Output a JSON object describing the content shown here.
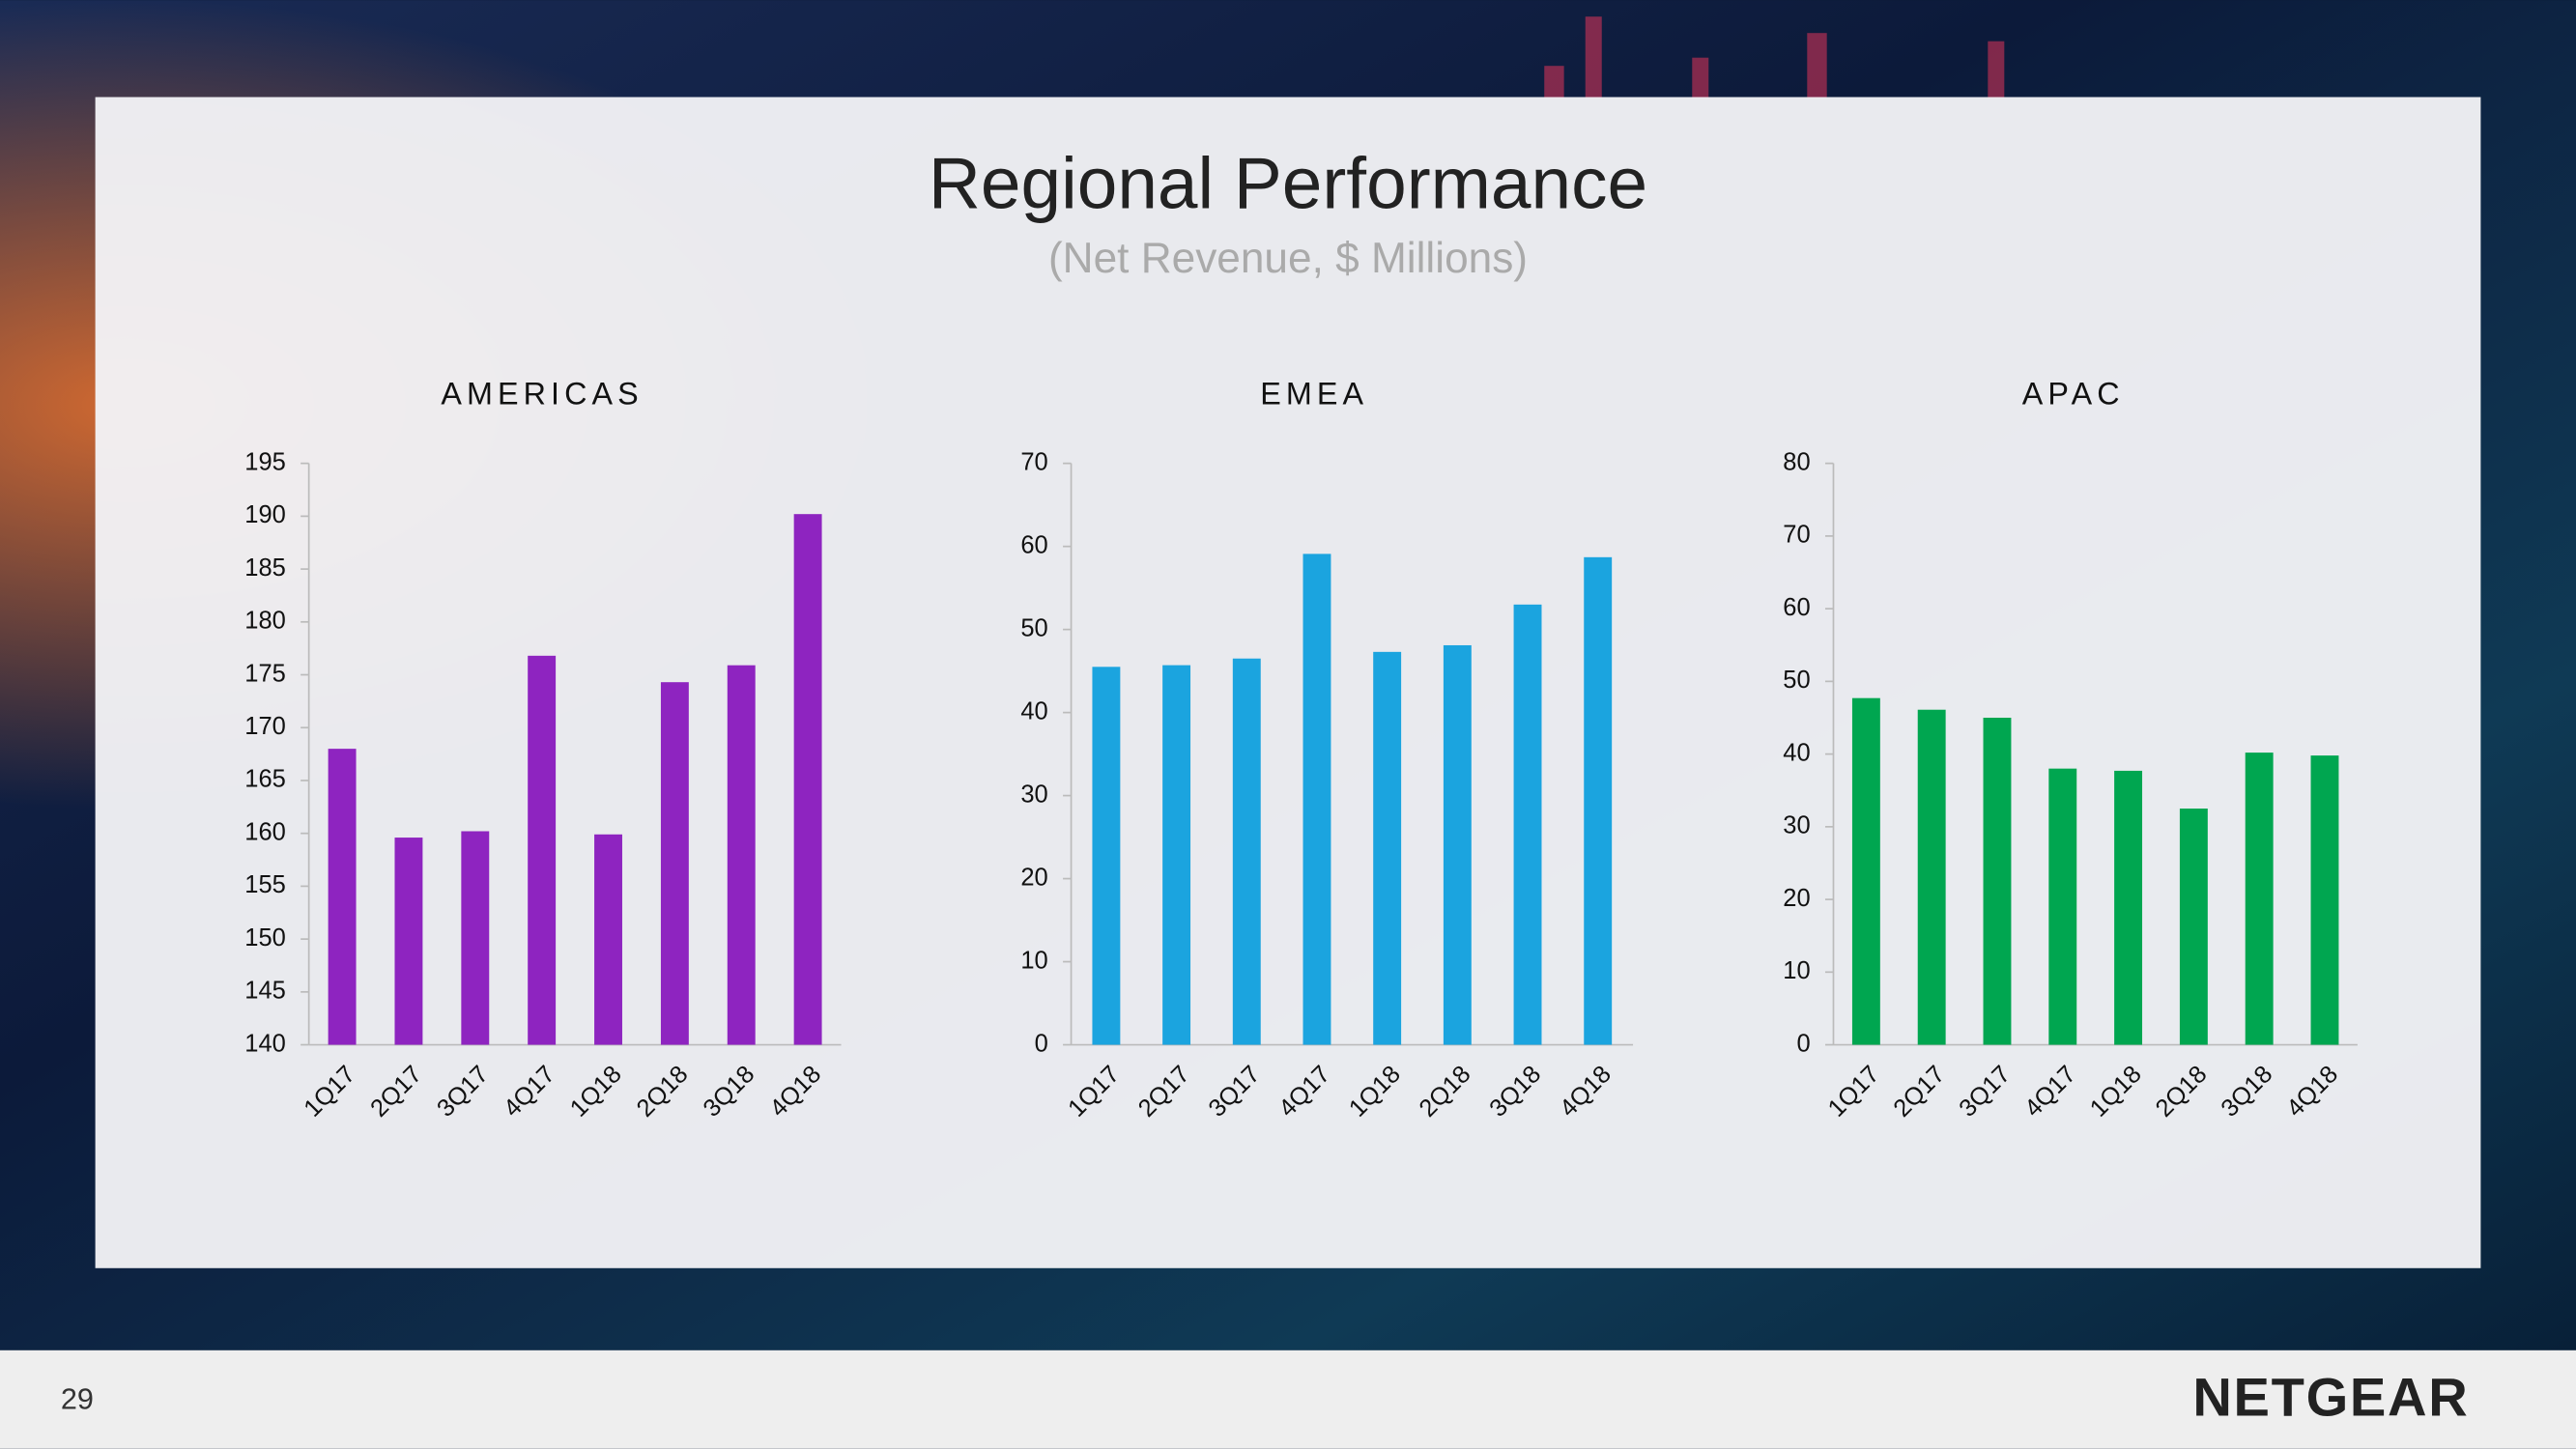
{
  "title": "Regional Performance",
  "subtitle": "(Net Revenue, $ Millions)",
  "page_number": "29",
  "logo": "NETGEAR",
  "chart_data": [
    {
      "type": "bar",
      "title": "AMERICAS",
      "categories": [
        "1Q17",
        "2Q17",
        "3Q17",
        "4Q17",
        "1Q18",
        "2Q18",
        "3Q18",
        "4Q18"
      ],
      "values": [
        168.0,
        159.6,
        160.2,
        176.8,
        159.9,
        174.3,
        175.9,
        190.2
      ],
      "color": "#8e24c0",
      "ylim": [
        140,
        195
      ],
      "yticks": [
        140,
        145,
        150,
        155,
        160,
        165,
        170,
        175,
        180,
        185,
        190,
        195
      ]
    },
    {
      "type": "bar",
      "title": "EMEA",
      "categories": [
        "1Q17",
        "2Q17",
        "3Q17",
        "4Q17",
        "1Q18",
        "2Q18",
        "3Q18",
        "4Q18"
      ],
      "values": [
        45.5,
        45.7,
        46.5,
        59.1,
        47.3,
        48.1,
        53.0,
        58.7
      ],
      "color": "#1ba4df",
      "ylim": [
        0,
        70
      ],
      "yticks": [
        0,
        10,
        20,
        30,
        40,
        50,
        60,
        70
      ]
    },
    {
      "type": "bar",
      "title": "APAC",
      "categories": [
        "1Q17",
        "2Q17",
        "3Q17",
        "4Q17",
        "1Q18",
        "2Q18",
        "3Q18",
        "4Q18"
      ],
      "values": [
        47.7,
        46.1,
        45.0,
        38.0,
        37.7,
        32.5,
        40.2,
        39.8
      ],
      "color": "#00a650",
      "ylim": [
        0,
        80
      ],
      "yticks": [
        0,
        10,
        20,
        30,
        40,
        50,
        60,
        70,
        80
      ]
    }
  ]
}
